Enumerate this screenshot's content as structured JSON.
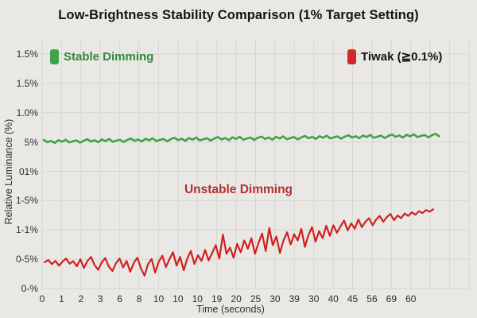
{
  "title": "Low-Brightness Stability Comparison (1% Target Setting)",
  "colors": {
    "background": "#eae8e4",
    "grid": "#d8d6d1",
    "stable_line": "#3fa347",
    "unstable_line": "#cf2121",
    "stable_text": "#2e8b3a",
    "annotation_text": "#b23230",
    "tick_text": "#2e2e2e",
    "title_text": "#141414"
  },
  "legend": {
    "left": {
      "label": "Stable Dimming",
      "swatch_color": "#3fa347",
      "text_color": "#2e8b3a"
    },
    "right": {
      "label": "Tiwak (≧0.1%)",
      "swatch_color": "#d32828",
      "text_color": "#141414"
    }
  },
  "annotation": {
    "text": "Unstable Dimming",
    "color": "#b23230"
  },
  "chart_data": {
    "type": "line",
    "title": "Low-Brightness Stability Comparison (1% Target Setting)",
    "xlabel": "Time (seconds)",
    "ylabel": "Relative Luminance (%)",
    "grid": true,
    "legend_position": "top",
    "x_tick_labels": [
      "0",
      "1",
      "2",
      "3",
      "6",
      "8",
      "10",
      "10",
      "10",
      "19",
      "20",
      "25",
      "30",
      "39",
      "30",
      "40",
      "45",
      "56",
      "69",
      "60"
    ],
    "y_tick_labels": [
      "1.5%",
      "1.5%",
      "1.0%",
      "5%",
      "01%",
      "1-5%",
      "1-1%",
      "0-5%",
      "0-%"
    ],
    "y_units_note": "series y values are fractions of plot height from bottom tick line (0-%) to top tick line (1.5%)",
    "series": [
      {
        "name": "Stable Dimming",
        "color": "#3fa347",
        "stroke_width": 2.6,
        "x_start": 0.004,
        "x_end": 0.93,
        "y_frac": [
          0.634,
          0.624,
          0.63,
          0.621,
          0.633,
          0.626,
          0.635,
          0.623,
          0.628,
          0.632,
          0.622,
          0.631,
          0.637,
          0.627,
          0.633,
          0.624,
          0.636,
          0.629,
          0.638,
          0.626,
          0.631,
          0.635,
          0.625,
          0.634,
          0.64,
          0.63,
          0.636,
          0.627,
          0.639,
          0.632,
          0.641,
          0.629,
          0.634,
          0.638,
          0.628,
          0.637,
          0.643,
          0.633,
          0.639,
          0.63,
          0.642,
          0.635,
          0.644,
          0.632,
          0.637,
          0.641,
          0.631,
          0.64,
          0.646,
          0.636,
          0.642,
          0.633,
          0.645,
          0.638,
          0.647,
          0.635,
          0.64,
          0.644,
          0.634,
          0.643,
          0.648,
          0.638,
          0.644,
          0.635,
          0.647,
          0.64,
          0.649,
          0.637,
          0.642,
          0.646,
          0.636,
          0.645,
          0.651,
          0.641,
          0.647,
          0.638,
          0.65,
          0.643,
          0.652,
          0.64,
          0.645,
          0.649,
          0.639,
          0.648,
          0.654,
          0.644,
          0.65,
          0.641,
          0.653,
          0.646,
          0.655,
          0.643,
          0.648,
          0.652,
          0.642,
          0.651,
          0.657,
          0.647,
          0.653,
          0.644,
          0.656,
          0.649,
          0.658,
          0.646,
          0.651,
          0.655,
          0.645,
          0.654,
          0.66,
          0.65
        ]
      },
      {
        "name": "Tiwak (≧0.1%)",
        "color": "#cf2121",
        "stroke_width": 2.2,
        "x_start": 0.006,
        "x_end": 0.916,
        "y_frac": [
          0.112,
          0.122,
          0.104,
          0.118,
          0.098,
          0.115,
          0.128,
          0.106,
          0.117,
          0.095,
          0.125,
          0.088,
          0.118,
          0.135,
          0.1,
          0.08,
          0.112,
          0.13,
          0.094,
          0.075,
          0.108,
          0.128,
          0.09,
          0.118,
          0.072,
          0.11,
          0.132,
          0.086,
          0.055,
          0.104,
          0.126,
          0.068,
          0.115,
          0.14,
          0.092,
          0.125,
          0.155,
          0.098,
          0.135,
          0.078,
          0.128,
          0.16,
          0.105,
          0.142,
          0.118,
          0.165,
          0.12,
          0.152,
          0.185,
          0.128,
          0.23,
          0.148,
          0.175,
          0.132,
          0.19,
          0.155,
          0.205,
          0.17,
          0.215,
          0.148,
          0.195,
          0.235,
          0.16,
          0.258,
          0.185,
          0.222,
          0.152,
          0.205,
          0.24,
          0.188,
          0.232,
          0.205,
          0.255,
          0.178,
          0.228,
          0.262,
          0.2,
          0.245,
          0.215,
          0.268,
          0.225,
          0.27,
          0.238,
          0.265,
          0.29,
          0.248,
          0.278,
          0.255,
          0.295,
          0.262,
          0.285,
          0.3,
          0.27,
          0.295,
          0.31,
          0.285,
          0.305,
          0.318,
          0.292,
          0.312,
          0.3,
          0.32,
          0.31,
          0.325,
          0.315,
          0.33,
          0.322,
          0.335,
          0.328,
          0.338
        ]
      }
    ]
  }
}
